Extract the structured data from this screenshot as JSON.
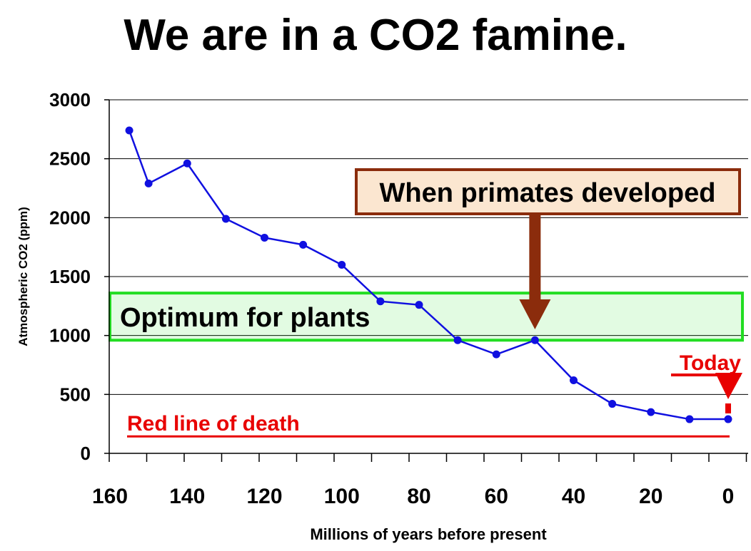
{
  "chart_data": {
    "type": "line",
    "title": "We are in a CO2 famine.",
    "xlabel": "Millions of years before present",
    "ylabel": "Atmospheric CO2 (ppm)",
    "xlim": [
      160,
      0
    ],
    "ylim": [
      0,
      3000
    ],
    "x_ticks": [
      "160",
      "140",
      "120",
      "100",
      "80",
      "60",
      "40",
      "20",
      "0"
    ],
    "y_ticks": [
      "3000",
      "2500",
      "2000",
      "1500",
      "1000",
      "500",
      "0"
    ],
    "grid": "horizontal",
    "series": [
      {
        "name": "Atmospheric CO2",
        "color": "#1010e0",
        "x": [
          155,
          150,
          140,
          130,
          120,
          110,
          100,
          90,
          80,
          70,
          60,
          50,
          40,
          30,
          20,
          10,
          0
        ],
        "values": [
          2740,
          2290,
          2460,
          1990,
          1830,
          1770,
          1600,
          1290,
          1260,
          960,
          840,
          960,
          620,
          420,
          350,
          290,
          290
        ]
      }
    ],
    "annotations": {
      "optimum_label": "Optimum for plants",
      "optimum_range": [
        960,
        1360
      ],
      "optimum_color": "#22dd22",
      "primates_label": "When primates developed",
      "primates_x": 50,
      "primates_color": "#8b2c0c",
      "today_label": "Today",
      "today_x": 0,
      "death_label": "Red line of death",
      "death_level": 150,
      "death_color": "#e80000"
    }
  }
}
